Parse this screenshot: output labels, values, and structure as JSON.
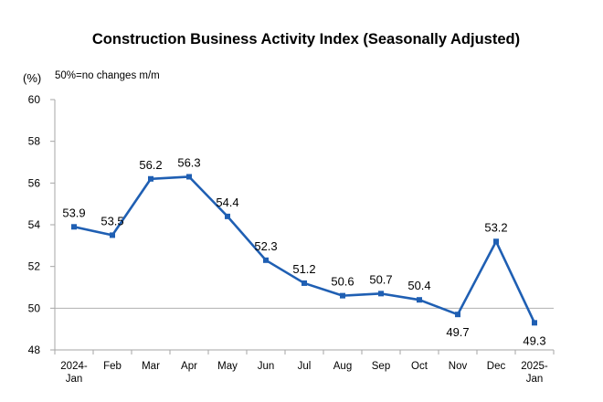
{
  "chart_data": {
    "type": "line",
    "title": "Construction Business Activity Index (Seasonally Adjusted)",
    "y_unit": "(%)",
    "note": "50%=no changes m/m",
    "categories": [
      [
        "2024-",
        "Jan"
      ],
      [
        "Feb"
      ],
      [
        "Mar"
      ],
      [
        "Apr"
      ],
      [
        "May"
      ],
      [
        "Jun"
      ],
      [
        "Jul"
      ],
      [
        "Aug"
      ],
      [
        "Sep"
      ],
      [
        "Oct"
      ],
      [
        "Nov"
      ],
      [
        "Dec"
      ],
      [
        "2025-",
        "Jan"
      ]
    ],
    "values": [
      53.9,
      53.5,
      56.2,
      56.3,
      54.4,
      52.3,
      51.2,
      50.6,
      50.7,
      50.4,
      49.7,
      53.2,
      49.3
    ],
    "value_labels": [
      "53.9",
      "53.5",
      "56.2",
      "56.3",
      "54.4",
      "52.3",
      "51.2",
      "50.6",
      "50.7",
      "50.4",
      "49.7",
      "53.2",
      "49.3"
    ],
    "label_positions": [
      "above",
      "above",
      "above",
      "above",
      "above",
      "above",
      "above",
      "above",
      "above",
      "above",
      "below",
      "above",
      "below"
    ],
    "ylim": [
      48,
      60
    ],
    "yticks": [
      "48",
      "50",
      "52",
      "54",
      "56",
      "58",
      "60"
    ],
    "reference_line": 50,
    "colors": {
      "line": "#1f5fb3",
      "reference": "#b0b0b0",
      "axis": "#a6a6a6"
    },
    "grid": false,
    "legend": "none"
  }
}
